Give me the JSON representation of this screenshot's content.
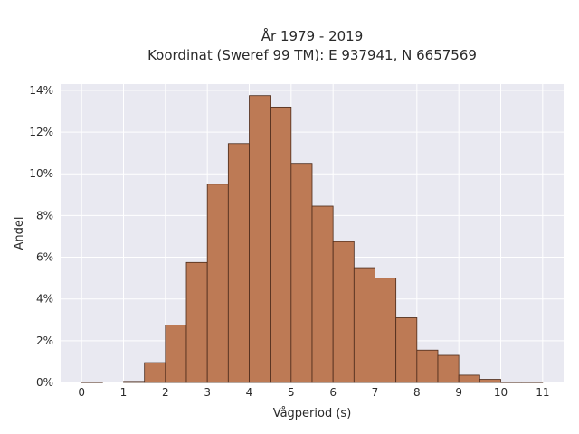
{
  "chart_data": {
    "type": "bar",
    "title_line1": "År 1979 - 2019",
    "title_line2": "Koordinat (Sweref 99 TM): E 937941, N 6657569",
    "xlabel": "Vågperiod (s)",
    "ylabel": "Andel",
    "xlim": [
      -0.5,
      11.5
    ],
    "ylim": [
      0,
      14.3
    ],
    "x_ticks": [
      0,
      1,
      2,
      3,
      4,
      5,
      6,
      7,
      8,
      9,
      10,
      11
    ],
    "y_ticks": [
      0,
      2,
      4,
      6,
      8,
      10,
      12,
      14
    ],
    "y_tick_labels": [
      "0%",
      "2%",
      "4%",
      "6%",
      "8%",
      "10%",
      "12%",
      "14%"
    ],
    "bin_width": 0.5,
    "bins": [
      {
        "start": 0.0,
        "value": 0.02
      },
      {
        "start": 1.0,
        "value": 0.05
      },
      {
        "start": 1.5,
        "value": 0.95
      },
      {
        "start": 2.0,
        "value": 2.75
      },
      {
        "start": 2.5,
        "value": 5.75
      },
      {
        "start": 3.0,
        "value": 9.5
      },
      {
        "start": 3.5,
        "value": 11.45
      },
      {
        "start": 4.0,
        "value": 13.75
      },
      {
        "start": 4.5,
        "value": 13.2
      },
      {
        "start": 5.0,
        "value": 10.5
      },
      {
        "start": 5.5,
        "value": 8.45
      },
      {
        "start": 6.0,
        "value": 6.75
      },
      {
        "start": 6.5,
        "value": 5.5
      },
      {
        "start": 7.0,
        "value": 5.0
      },
      {
        "start": 7.5,
        "value": 3.1
      },
      {
        "start": 8.0,
        "value": 1.55
      },
      {
        "start": 8.5,
        "value": 1.3
      },
      {
        "start": 9.0,
        "value": 0.35
      },
      {
        "start": 9.5,
        "value": 0.15
      },
      {
        "start": 10.0,
        "value": 0.02
      },
      {
        "start": 10.5,
        "value": 0.02
      }
    ],
    "colors": {
      "bar_fill": "#bd7a55",
      "bar_edge": "#4a2a1a",
      "plot_background": "#e9e9f1",
      "grid": "#ffffff"
    },
    "grid": true
  }
}
